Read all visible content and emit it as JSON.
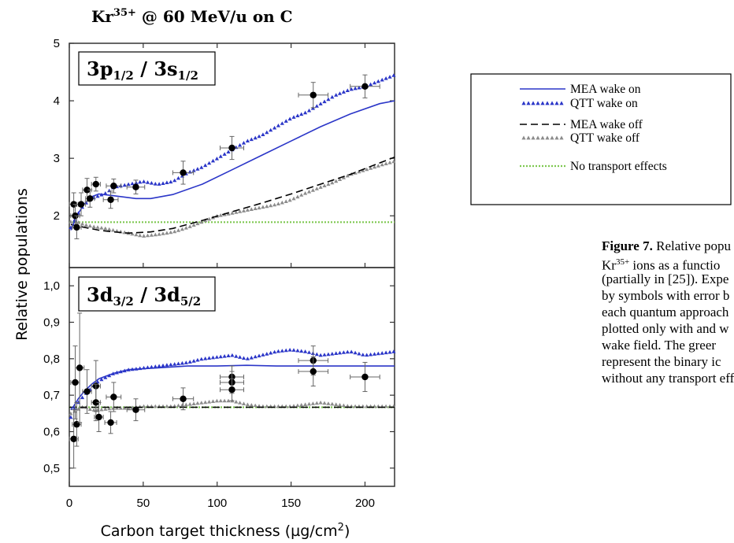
{
  "chart_data": {
    "type": "scatter",
    "title": "Kr³⁵⁺ @ 60 MeV/u on C",
    "title_base": "Kr",
    "title_sup": "35+",
    "title_rest": " @ 60 MeV/u on C",
    "xlabel": "Carbon target thickness (µg/cm²)",
    "xlabel_base": "Carbon target thickness (µg/cm",
    "xlabel_sup": "2",
    "xlabel_close": ")",
    "ylabel": "Relative populations",
    "xlim": [
      0,
      220
    ],
    "xticks": [
      "0",
      "50",
      "100",
      "150",
      "200"
    ],
    "xtick_values": [
      0,
      50,
      100,
      150,
      200
    ],
    "legend": {
      "placement": "right",
      "entries": [
        {
          "label": "MEA wake on",
          "style": "solid",
          "color": "#2b36c8"
        },
        {
          "label": "QTT wake on",
          "style": "triangles",
          "color": "#2b36c8"
        },
        {
          "label": "MEA wake off",
          "style": "dashed",
          "color": "#000000"
        },
        {
          "label": "QTT wake off",
          "style": "triangles",
          "color": "#8c8c8c"
        },
        {
          "label": "No transport effects",
          "style": "dotted",
          "color": "#7ec850"
        }
      ]
    },
    "panels": [
      {
        "label": "3p1/2 / 3s1/2",
        "label_parts": [
          "3p",
          "1/2",
          " / 3s",
          "1/2"
        ],
        "ylim": [
          1.1,
          5.0
        ],
        "yticks": [
          "2",
          "3",
          "4",
          "5"
        ],
        "ytick_values": [
          2,
          3,
          4,
          5
        ],
        "experiment": {
          "x": [
            3,
            4,
            5,
            8,
            12,
            14,
            18,
            28,
            30,
            45,
            77,
            110,
            165,
            200
          ],
          "y": [
            2.2,
            2.0,
            1.8,
            2.2,
            2.45,
            2.3,
            2.55,
            2.28,
            2.52,
            2.5,
            2.75,
            3.18,
            4.1,
            4.25
          ],
          "xerr": [
            3,
            3,
            3,
            3,
            3,
            3,
            3,
            5,
            5,
            6,
            7,
            8,
            10,
            10
          ],
          "yerr": [
            0.2,
            0.2,
            0.2,
            0.2,
            0.2,
            0.15,
            0.12,
            0.15,
            0.12,
            0.12,
            0.2,
            0.2,
            0.22,
            0.2
          ]
        },
        "series": [
          {
            "name": "MEA wake on",
            "x": [
              1,
              5,
              10,
              15,
              20,
              30,
              45,
              55,
              70,
              90,
              110,
              130,
              150,
              170,
              190,
              210,
              220
            ],
            "y": [
              1.75,
              2.0,
              2.2,
              2.33,
              2.38,
              2.35,
              2.3,
              2.3,
              2.37,
              2.55,
              2.8,
              3.05,
              3.3,
              3.55,
              3.77,
              3.95,
              4.0
            ]
          },
          {
            "name": "QTT wake on",
            "x": [
              1,
              5,
              10,
              15,
              20,
              25,
              30,
              40,
              50,
              60,
              70,
              80,
              90,
              100,
              110,
              120,
              130,
              140,
              150,
              160,
              170,
              180,
              190,
              200,
              210,
              220
            ],
            "y": [
              1.8,
              2.0,
              2.2,
              2.3,
              2.35,
              2.4,
              2.5,
              2.55,
              2.6,
              2.55,
              2.6,
              2.75,
              2.85,
              3.0,
              3.15,
              3.3,
              3.4,
              3.55,
              3.7,
              3.8,
              3.95,
              4.1,
              4.2,
              4.25,
              4.35,
              4.45
            ]
          },
          {
            "name": "MEA wake off",
            "x": [
              1,
              10,
              20,
              30,
              40,
              55,
              70,
              90,
              110,
              130,
              150,
              170,
              190,
              210,
              220
            ],
            "y": [
              1.85,
              1.8,
              1.75,
              1.72,
              1.7,
              1.72,
              1.78,
              1.92,
              2.07,
              2.22,
              2.38,
              2.55,
              2.72,
              2.92,
              3.02
            ]
          },
          {
            "name": "QTT wake off",
            "x": [
              1,
              5,
              10,
              15,
              20,
              25,
              30,
              40,
              50,
              60,
              70,
              80,
              90,
              100,
              110,
              120,
              130,
              140,
              150,
              160,
              170,
              180,
              190,
              200,
              210,
              220
            ],
            "y": [
              1.9,
              1.9,
              1.85,
              1.82,
              1.8,
              1.78,
              1.75,
              1.7,
              1.65,
              1.68,
              1.72,
              1.8,
              1.9,
              2.0,
              2.05,
              2.1,
              2.15,
              2.2,
              2.28,
              2.4,
              2.5,
              2.6,
              2.72,
              2.8,
              2.88,
              2.95
            ]
          },
          {
            "name": "No transport effects",
            "x": [
              0,
              220
            ],
            "y": [
              1.89,
              1.89
            ]
          }
        ]
      },
      {
        "label": "3d3/2 / 3d5/2",
        "label_parts": [
          "3d",
          "3/2",
          " / 3d",
          "5/2"
        ],
        "ylim": [
          0.45,
          1.05
        ],
        "yticks": [
          "0,5",
          "0,6",
          "0,7",
          "0,8",
          "0,9",
          "1,0"
        ],
        "ytick_values": [
          0.5,
          0.6,
          0.7,
          0.8,
          0.9,
          1.0
        ],
        "experiment": {
          "x": [
            3,
            4,
            5,
            7,
            12,
            18,
            18,
            20,
            28,
            30,
            45,
            77,
            110,
            110,
            110,
            165,
            165,
            200
          ],
          "y": [
            0.58,
            0.735,
            0.62,
            0.775,
            0.71,
            0.725,
            0.68,
            0.64,
            0.625,
            0.695,
            0.66,
            0.69,
            0.75,
            0.735,
            0.715,
            0.795,
            0.765,
            0.75
          ],
          "xerr": [
            3,
            3,
            3,
            3,
            3,
            3,
            3,
            3,
            4,
            5,
            6,
            7,
            8,
            8,
            8,
            10,
            10,
            10
          ],
          "yerr": [
            0.08,
            0.1,
            0.06,
            0.15,
            0.06,
            0.07,
            0.05,
            0.04,
            0.03,
            0.04,
            0.03,
            0.03,
            0.03,
            0.03,
            0.03,
            0.04,
            0.04,
            0.04
          ]
        },
        "series": [
          {
            "name": "MEA wake on",
            "x": [
              1,
              3,
              6,
              10,
              15,
              20,
              30,
              40,
              60,
              80,
              100,
              120,
              140,
              160,
              180,
              200,
              220
            ],
            "y": [
              0.66,
              0.67,
              0.69,
              0.71,
              0.73,
              0.745,
              0.76,
              0.77,
              0.775,
              0.78,
              0.78,
              0.782,
              0.78,
              0.78,
              0.78,
              0.78,
              0.78
            ]
          },
          {
            "name": "QTT wake on",
            "x": [
              1,
              3,
              6,
              10,
              15,
              20,
              30,
              40,
              50,
              60,
              70,
              80,
              90,
              100,
              110,
              120,
              130,
              140,
              150,
              160,
              170,
              180,
              190,
              200,
              210,
              220
            ],
            "y": [
              0.64,
              0.66,
              0.68,
              0.7,
              0.72,
              0.74,
              0.76,
              0.77,
              0.775,
              0.78,
              0.785,
              0.79,
              0.8,
              0.805,
              0.81,
              0.8,
              0.81,
              0.82,
              0.825,
              0.82,
              0.81,
              0.815,
              0.82,
              0.81,
              0.815,
              0.82
            ]
          },
          {
            "name": "MEA wake off",
            "x": [
              0,
              220
            ],
            "y": [
              0.667,
              0.667
            ]
          },
          {
            "name": "QTT wake off",
            "x": [
              1,
              5,
              10,
              15,
              20,
              30,
              40,
              50,
              60,
              70,
              80,
              90,
              100,
              110,
              120,
              130,
              140,
              150,
              160,
              170,
              180,
              190,
              200,
              210,
              220
            ],
            "y": [
              0.65,
              0.66,
              0.67,
              0.66,
              0.66,
              0.665,
              0.665,
              0.67,
              0.67,
              0.67,
              0.675,
              0.68,
              0.685,
              0.685,
              0.675,
              0.67,
              0.67,
              0.67,
              0.675,
              0.68,
              0.675,
              0.67,
              0.67,
              0.67,
              0.67
            ]
          },
          {
            "name": "No transport effects",
            "x": [
              0,
              220
            ],
            "y": [
              0.667,
              0.667
            ]
          }
        ]
      }
    ]
  },
  "colors": {
    "mea_on": "#2b36c8",
    "qtt_on": "#2b36c8",
    "mea_off": "#000000",
    "qtt_off": "#8c8c8c",
    "no_transport": "#7ec850",
    "experiment": "#000000",
    "error_bar": "#666666"
  },
  "caption": {
    "lines": [
      {
        "bold": "Figure 7.",
        "text": " Relative popu"
      },
      {
        "base": "Kr",
        "sup": "35+",
        "text": "  ions  as  a  functio"
      },
      {
        "text": "(partially in [25]). Expe"
      },
      {
        "text": "by symbols with error b"
      },
      {
        "text": "each quantum approach"
      },
      {
        "text": "plotted only with and w"
      },
      {
        "text": "wake  field.  The  greer"
      },
      {
        "text": "represent  the  binary  ic"
      },
      {
        "text": "without any transport eff"
      }
    ]
  }
}
